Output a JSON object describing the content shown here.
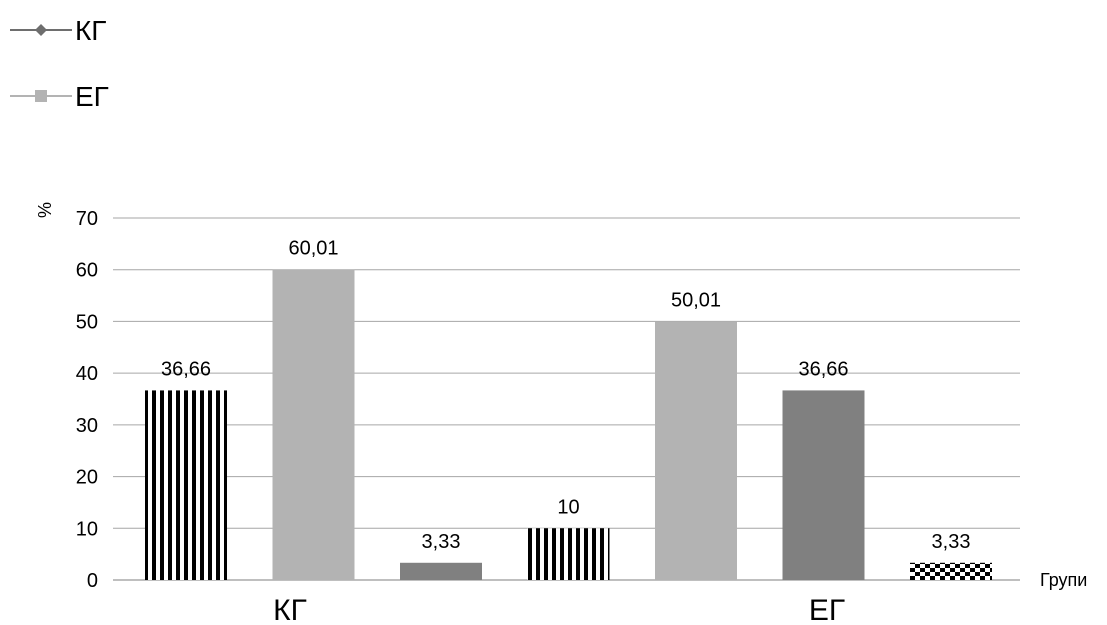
{
  "chart_data": {
    "type": "bar",
    "legend": [
      {
        "name": "КГ",
        "marker": "diamond",
        "color": "#7f7f7f"
      },
      {
        "name": "ЕГ",
        "marker": "square",
        "color": "#b3b3b3"
      }
    ],
    "legend_position": "top-left",
    "ylabel": "%",
    "xlabel": "Групи",
    "ylim": [
      0,
      70
    ],
    "yticks": [
      0,
      10,
      20,
      30,
      40,
      50,
      60,
      70
    ],
    "grid": true,
    "groups": [
      "КГ",
      "ЕГ"
    ],
    "bars": [
      {
        "group": "КГ",
        "value": 36.66,
        "label": "36,66",
        "style": "vertical-stripes",
        "color": "#000000"
      },
      {
        "group": "КГ",
        "value": 60.01,
        "label": "60,01",
        "style": "solid",
        "color": "#b3b3b3"
      },
      {
        "group": "КГ",
        "value": 3.33,
        "label": "3,33",
        "style": "solid",
        "color": "#808080"
      },
      {
        "group": "ЕГ",
        "value": 10,
        "label": "10",
        "style": "vertical-stripes",
        "color": "#000000"
      },
      {
        "group": "ЕГ",
        "value": 50.01,
        "label": "50,01",
        "style": "solid",
        "color": "#b3b3b3"
      },
      {
        "group": "ЕГ",
        "value": 36.66,
        "label": "36,66",
        "style": "solid",
        "color": "#808080"
      },
      {
        "group": "ЕГ",
        "value": 3.33,
        "label": "3,33",
        "style": "checker",
        "color": "#000000"
      }
    ]
  }
}
